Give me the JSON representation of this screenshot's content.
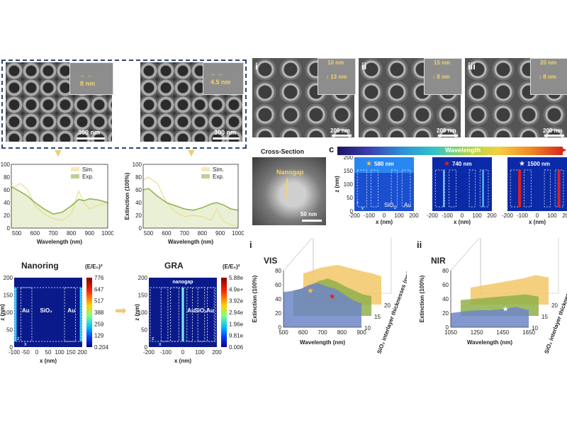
{
  "sem_top": {
    "left": {
      "gap_label": "8 nm",
      "scale_label": "300 nm"
    },
    "right": {
      "gap_label": "4.5 nm",
      "scale_label": "300 nm"
    }
  },
  "sem_series": [
    {
      "label": "i",
      "top_label": "10 nm",
      "side_label": "13 nm",
      "scale_label": "200 nm"
    },
    {
      "label": "ii",
      "top_label": "15 nm",
      "side_label": "8 nm",
      "scale_label": "200 nm"
    },
    {
      "label": "iii",
      "top_label": "20 nm",
      "side_label": "8 nm",
      "scale_label": "200 nm"
    }
  ],
  "cross_section": {
    "title": "Cross-Section",
    "nanogap": "Nanogap",
    "scale_label": "50 nm"
  },
  "field_maps_c": {
    "panel_label": "c",
    "colorbar_label": "Wavelength",
    "maps": [
      {
        "wavelength": "580 nm",
        "star": "★",
        "star_color": "#f2c14e"
      },
      {
        "wavelength": "740 nm",
        "star": "★",
        "star_color": "#e2231a"
      },
      {
        "wavelength": "1500 nm",
        "star": "★",
        "star_color": "#ffffff"
      }
    ],
    "z_label": "z (nm)",
    "x_label": "x (nm)",
    "z_ticks": [
      "200",
      "150",
      "100",
      "50",
      "0"
    ],
    "x_ticks": [
      "-200",
      "-100",
      "0",
      "100",
      "200"
    ],
    "labels": {
      "sio2": "SiO",
      "sio2_sub": "2",
      "au": "Au"
    },
    "axis_z": "z",
    "axis_x": "x"
  },
  "spectra": [
    {
      "legend": [
        "Sim.",
        "Exp."
      ],
      "ylabel": "",
      "xlabel": "Wavelength (nm)",
      "y_ticks": [
        "100",
        "80",
        "60",
        "40",
        "20",
        "0"
      ],
      "x_ticks": [
        "500",
        "600",
        "700",
        "800",
        "900",
        "1000"
      ]
    },
    {
      "legend": [
        "Sim.",
        "Exp."
      ],
      "ylabel": "Extinction (100%)",
      "xlabel": "Wavelength (nm)",
      "y_ticks": [
        "100",
        "80",
        "60",
        "40",
        "20",
        "0"
      ],
      "x_ticks": [
        "500",
        "600",
        "700",
        "800",
        "900",
        "1000"
      ]
    }
  ],
  "chart_data": [
    {
      "type": "line",
      "title": "",
      "xlabel": "Wavelength (nm)",
      "ylabel": "",
      "xlim": [
        470,
        1000
      ],
      "ylim": [
        0,
        100
      ],
      "x": [
        470,
        520,
        560,
        600,
        650,
        700,
        750,
        800,
        840,
        870,
        900,
        950,
        1000
      ],
      "series": [
        {
          "name": "Sim.",
          "values": [
            62,
            70,
            60,
            35,
            22,
            15,
            12,
            22,
            58,
            40,
            30,
            36,
            40
          ]
        },
        {
          "name": "Exp.",
          "values": [
            65,
            57,
            50,
            40,
            30,
            22,
            25,
            35,
            45,
            43,
            46,
            44,
            40
          ]
        }
      ]
    },
    {
      "type": "line",
      "title": "",
      "xlabel": "Wavelength (nm)",
      "ylabel": "Extinction (100%)",
      "xlim": [
        470,
        1000
      ],
      "ylim": [
        0,
        100
      ],
      "x": [
        470,
        500,
        550,
        600,
        650,
        700,
        750,
        800,
        850,
        880,
        920,
        960,
        1000
      ],
      "series": [
        {
          "name": "Sim.",
          "values": [
            75,
            80,
            70,
            40,
            25,
            18,
            20,
            18,
            12,
            30,
            10,
            5,
            3
          ]
        },
        {
          "name": "Exp.",
          "values": [
            60,
            62,
            50,
            40,
            35,
            30,
            28,
            32,
            38,
            40,
            36,
            30,
            28
          ]
        }
      ]
    },
    {
      "type": "area",
      "title": "VIS",
      "xlabel": "Wavelength (nm)",
      "ylabel": "Extinction (100%)",
      "zlabel": "SiO2 interlayer thicknesses (nm)",
      "x": [
        450,
        500,
        550,
        600,
        650,
        700,
        750,
        800,
        850,
        900
      ],
      "series": [
        {
          "name": "10",
          "values": [
            62,
            64,
            68,
            75,
            78,
            72,
            68,
            58,
            48,
            42
          ]
        },
        {
          "name": "15",
          "values": [
            45,
            48,
            55,
            62,
            66,
            60,
            52,
            45,
            38,
            35
          ]
        },
        {
          "name": "20",
          "values": [
            55,
            60,
            65,
            68,
            70,
            66,
            62,
            58,
            55,
            50
          ]
        }
      ]
    },
    {
      "type": "area",
      "title": "NIR",
      "xlabel": "Wavelength (nm)",
      "ylabel": "Extinction (100%)",
      "zlabel": "SiO2 interlayer thicknesses (nm)",
      "x": [
        1050,
        1150,
        1250,
        1350,
        1450,
        1550,
        1650
      ],
      "series": [
        {
          "name": "10",
          "values": [
            25,
            28,
            30,
            30,
            32,
            36,
            30
          ]
        },
        {
          "name": "15",
          "values": [
            28,
            30,
            32,
            34,
            36,
            38,
            34
          ]
        },
        {
          "name": "20",
          "values": [
            30,
            34,
            38,
            42,
            46,
            52,
            48
          ]
        }
      ]
    }
  ],
  "nanoring_map": {
    "title": "Nanoring",
    "cbar_title": "(E/E₀)²",
    "cbar_ticks": [
      "776",
      "647",
      "517",
      "388",
      "259",
      "129",
      "0.204"
    ],
    "labels": [
      "Au",
      "SiO₂",
      "Au"
    ],
    "x_label": "x (nm)",
    "z_label": "z (nm)",
    "x_ticks": [
      "-100",
      "-50",
      "0",
      "50",
      "100",
      "150",
      "200"
    ],
    "z_ticks": [
      "200",
      "150",
      "100",
      "50",
      "0"
    ],
    "axis_z": "z",
    "axis_x": "x"
  },
  "gra_map": {
    "title": "GRA",
    "cbar_title": "(E/E₀)²",
    "cbar_ticks": [
      "5.88e",
      "4.9e+",
      "3.92e",
      "2.94e",
      "1.96e",
      "9.81e",
      "0.006"
    ],
    "nanogap": "nanogap",
    "labels": [
      "Au",
      "SiO₂",
      "Au"
    ],
    "x_label": "x (nm)",
    "z_label": "z (nm)",
    "x_ticks": [
      "-200",
      "-100",
      "0",
      "100",
      "200"
    ],
    "z_ticks": [
      "200",
      "150",
      "100",
      "50",
      "0"
    ],
    "axis_z": "z",
    "axis_x": "x"
  },
  "plot3d": [
    {
      "roman": "i",
      "title": "VIS",
      "xlabel": "Wavelength (nm)",
      "ylabel": "Extinction (100%)",
      "zlabel": "SiO₂ interlayer thicknesses (nm)",
      "x_ticks": [
        "500",
        "600",
        "700",
        "800",
        "900"
      ],
      "y_ticks": [
        "80",
        "60",
        "40",
        "20",
        "0"
      ],
      "z_ticks": [
        "20",
        "15",
        "10"
      ]
    },
    {
      "roman": "ii",
      "title": "NIR",
      "xlabel": "Wavelength (nm)",
      "ylabel": "Extinction (100%)",
      "zlabel": "SiO₂ interlayer thicknesses (nm)",
      "x_ticks": [
        "1050",
        "1250",
        "1450",
        "1650"
      ],
      "y_ticks": [
        "80",
        "60",
        "40",
        "20",
        "0"
      ],
      "z_ticks": [
        "20",
        "15",
        "10"
      ]
    }
  ],
  "colors": {
    "sim": "#eadd8c",
    "exp": "#8fb04a",
    "blue": "#6d86c6",
    "green": "#8fb04a",
    "yellow": "#f2c766",
    "dark_blue": "#0a1a8a"
  }
}
